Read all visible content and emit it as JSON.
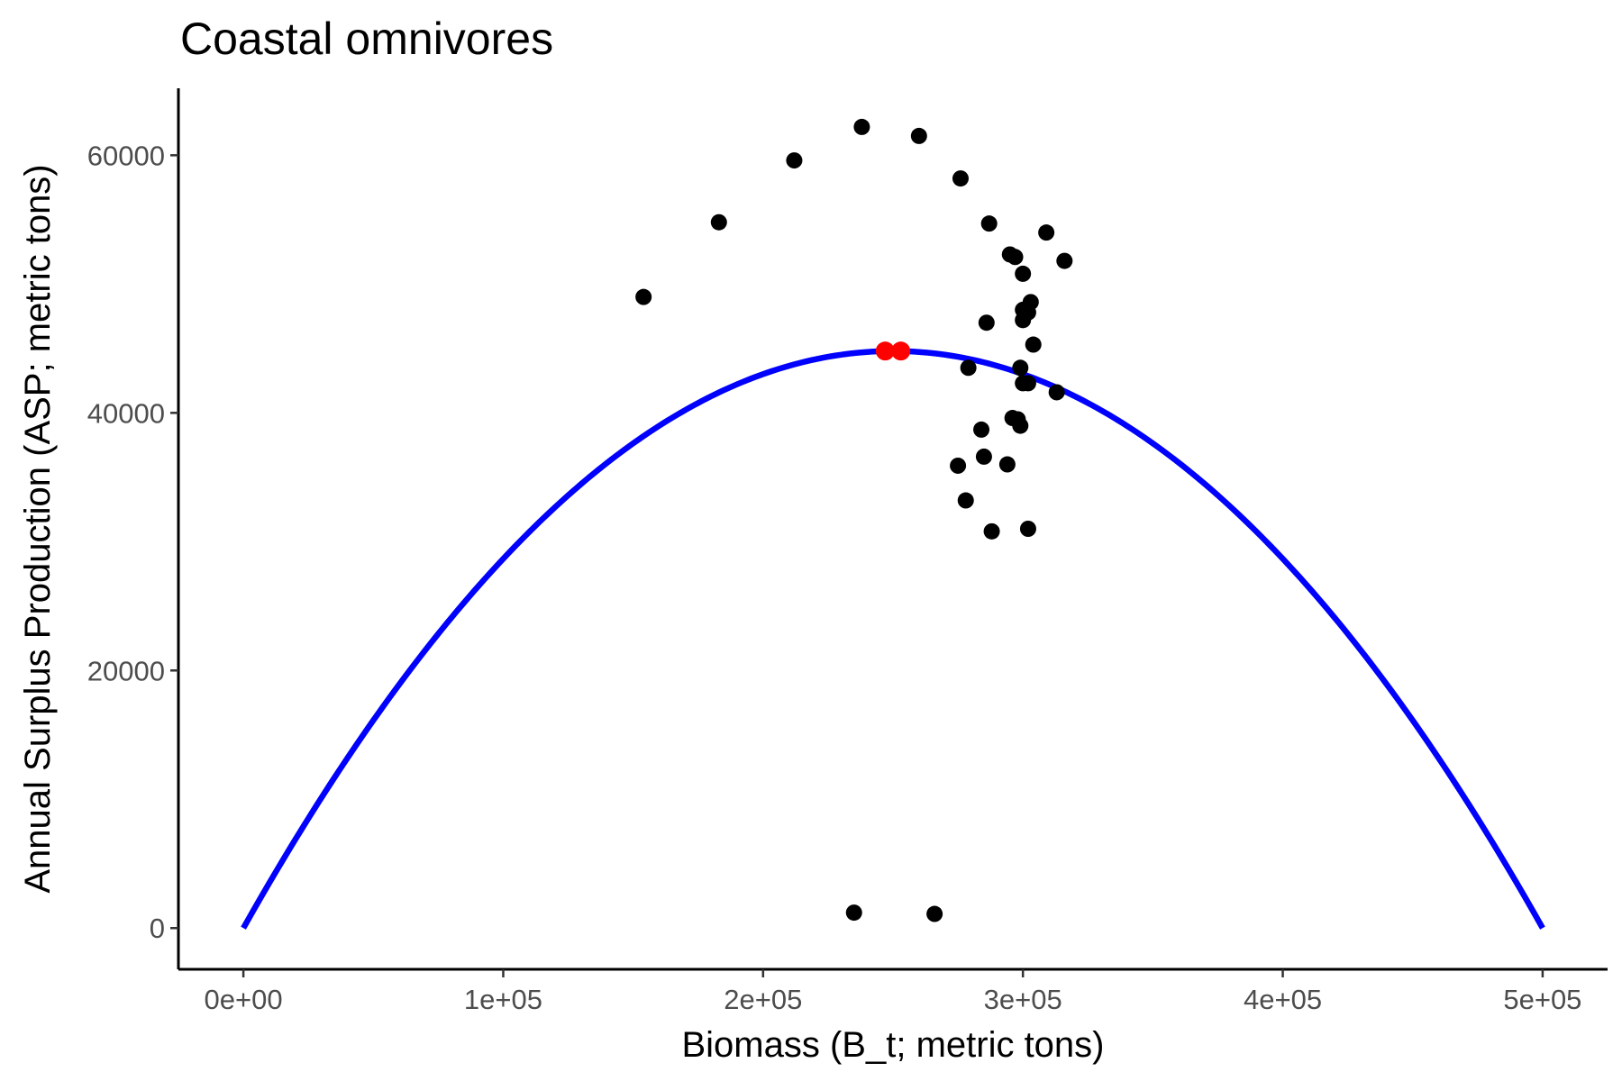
{
  "chart_data": {
    "type": "scatter",
    "title": "Coastal omnivores",
    "xlabel": "Biomass (B_t; metric tons)",
    "ylabel": "Annual Surplus Production (ASP; metric tons)",
    "xlim": [
      -25000,
      525000
    ],
    "ylim": [
      -3200,
      65200
    ],
    "x_ticks": [
      0,
      100000,
      200000,
      300000,
      400000,
      500000
    ],
    "x_tick_labels": [
      "0e+00",
      "1e+05",
      "2e+05",
      "3e+05",
      "4e+05",
      "5e+05"
    ],
    "y_ticks": [
      0,
      20000,
      40000,
      60000
    ],
    "y_tick_labels": [
      "0",
      "20000",
      "40000",
      "60000"
    ],
    "grid": false,
    "legend": "none",
    "colors": {
      "points": "#000000",
      "curve": "#0000ff",
      "highlight": "#ff0000"
    },
    "series": [
      {
        "kind": "scatter",
        "points": [
          [
            154000,
            49000
          ],
          [
            183000,
            54800
          ],
          [
            212000,
            59600
          ],
          [
            238000,
            62200
          ],
          [
            260000,
            61500
          ],
          [
            276000,
            58200
          ],
          [
            287000,
            54700
          ],
          [
            295000,
            52300
          ],
          [
            297000,
            52100
          ],
          [
            300000,
            50800
          ],
          [
            309000,
            54000
          ],
          [
            316000,
            51800
          ],
          [
            303000,
            48600
          ],
          [
            300000,
            48000
          ],
          [
            302000,
            47800
          ],
          [
            300000,
            47200
          ],
          [
            286000,
            47000
          ],
          [
            304000,
            45300
          ],
          [
            279000,
            43500
          ],
          [
            299000,
            43500
          ],
          [
            300000,
            42300
          ],
          [
            302000,
            42300
          ],
          [
            313000,
            41600
          ],
          [
            296000,
            39600
          ],
          [
            298000,
            39500
          ],
          [
            299000,
            39000
          ],
          [
            284000,
            38700
          ],
          [
            285000,
            36600
          ],
          [
            275000,
            35900
          ],
          [
            294000,
            36000
          ],
          [
            278000,
            33200
          ],
          [
            288000,
            30800
          ],
          [
            302000,
            31000
          ],
          [
            235000,
            1200
          ],
          [
            266000,
            1100
          ]
        ]
      },
      {
        "kind": "line",
        "function": "4 * MSY * B / K * (1 - B / K)",
        "K": 500000,
        "MSY": 44800,
        "x_range": [
          0,
          500000
        ]
      },
      {
        "kind": "scatter-highlight",
        "points": [
          [
            247000,
            44800
          ],
          [
            253000,
            44800
          ]
        ]
      }
    ]
  }
}
